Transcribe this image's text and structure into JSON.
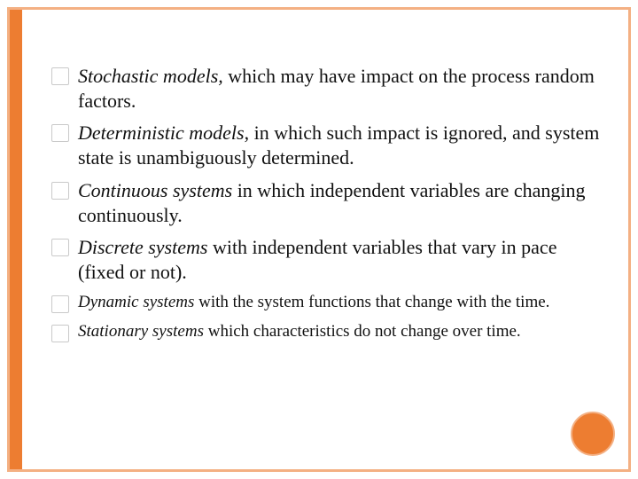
{
  "colors": {
    "accent": "#ed7d31",
    "border": "#f4b083",
    "text": "#111111",
    "bullet_border": "#c9c9c9",
    "background": "#ffffff"
  },
  "typography": {
    "body_fontsize_pt": 17,
    "last_items_fontsize_pt": 15,
    "font_family": "serif"
  },
  "items": [
    {
      "term": "Stochastic models,",
      "rest": " which may have impact on the process random factors.",
      "size": "lg"
    },
    {
      "term": "Deterministic models",
      "rest": ", in which such impact is ignored, and system state is unambiguously determined.",
      "size": "lg"
    },
    {
      "term": "Continuous systems",
      "rest": " in which independent variables are changing continuously.",
      "size": "lg"
    },
    {
      "term": "Discrete systems",
      "rest": " with independent variables that vary in pace (fixed or not).",
      "size": "lg"
    },
    {
      "term": "Dynamic systems",
      "rest": " with the system functions that change with the time.",
      "size": "sm"
    },
    {
      "term": "Stationary systems",
      "rest": " which characteristics do not change over time.",
      "size": "sm"
    }
  ]
}
